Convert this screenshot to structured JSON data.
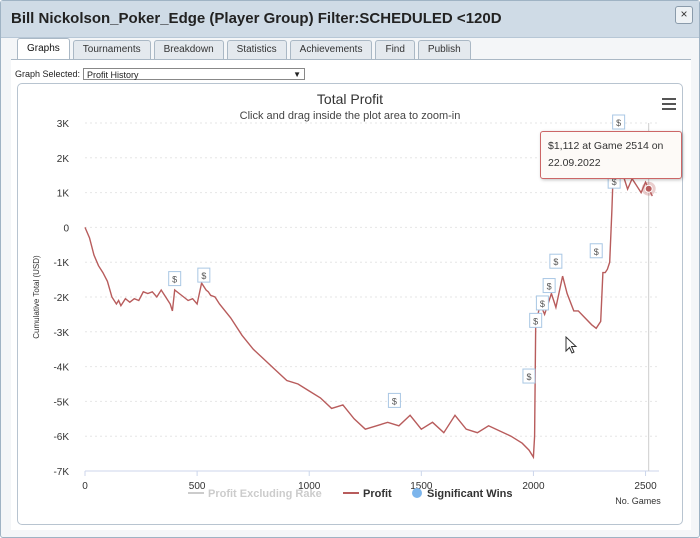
{
  "window": {
    "title": "Bill Nickolson_Poker_Edge (Player Group) Filter:SCHEDULED <120D",
    "close_label": "×"
  },
  "tabs": [
    {
      "label": "Graphs",
      "active": true
    },
    {
      "label": "Tournaments",
      "active": false
    },
    {
      "label": "Breakdown",
      "active": false
    },
    {
      "label": "Statistics",
      "active": false
    },
    {
      "label": "Achievements",
      "active": false
    },
    {
      "label": "Find",
      "active": false
    },
    {
      "label": "Publish",
      "active": false
    }
  ],
  "graph_select": {
    "label": "Graph Selected:",
    "value": "Profit History"
  },
  "tooltip": {
    "line1": "$1,112 at Game 2514 on",
    "line2": "22.09.2022"
  },
  "icons": {
    "menu": "hamburger-menu-icon",
    "cursor": "mouse-pointer-icon",
    "close": "close-icon"
  },
  "colors": {
    "profit": "#b85c5c",
    "excluding_rake": "#cccccc",
    "significant": "#7cb5ec",
    "grid": "#e6e6e6"
  },
  "chart_data": {
    "type": "line",
    "title": "Total Profit",
    "subtitle": "Click and drag inside the plot area to zoom-in",
    "ylabel": "Cumulative Total (USD)",
    "xlabel": "No. Games",
    "xlim": [
      0,
      2560
    ],
    "ylim": [
      -7000,
      3000
    ],
    "x_ticks": [
      0,
      500,
      1000,
      1500,
      2000,
      2500
    ],
    "x_tick_labels": [
      "0",
      "500",
      "1000",
      "1500",
      "2000",
      "2500"
    ],
    "y_ticks": [
      3000,
      2000,
      1000,
      0,
      -1000,
      -2000,
      -3000,
      -4000,
      -5000,
      -6000,
      -7000
    ],
    "y_tick_labels": [
      "3K",
      "2K",
      "1K",
      "0",
      "-1K",
      "-2K",
      "-3K",
      "-4K",
      "-5K",
      "-6K",
      "-7K"
    ],
    "legend": {
      "placement": "bottom-center",
      "items": [
        {
          "label": "Profit Excluding Rake",
          "kind": "line",
          "color": "#cccccc",
          "faded": true
        },
        {
          "label": "Profit",
          "kind": "line",
          "color": "#b85c5c",
          "faded": false
        },
        {
          "label": "Significant Wins",
          "kind": "dot",
          "color": "#7cb5ec",
          "faded": false
        }
      ]
    },
    "series": [
      {
        "name": "Profit",
        "x": [
          0,
          20,
          40,
          60,
          80,
          100,
          120,
          140,
          150,
          160,
          180,
          200,
          220,
          240,
          260,
          280,
          300,
          320,
          340,
          360,
          380,
          390,
          400,
          420,
          440,
          460,
          480,
          500,
          520,
          540,
          550,
          560,
          580,
          600,
          650,
          700,
          750,
          800,
          850,
          900,
          950,
          1000,
          1050,
          1100,
          1150,
          1200,
          1250,
          1300,
          1350,
          1400,
          1450,
          1500,
          1550,
          1600,
          1650,
          1700,
          1750,
          1800,
          1850,
          1900,
          1950,
          1980,
          2000,
          2005,
          2010,
          2030,
          2050,
          2080,
          2100,
          2130,
          2150,
          2180,
          2200,
          2230,
          2260,
          2280,
          2300,
          2310,
          2320,
          2330,
          2340,
          2350,
          2360,
          2365,
          2370,
          2400,
          2420,
          2440,
          2460,
          2480,
          2500,
          2514,
          2530
        ],
        "y": [
          0,
          -300,
          -800,
          -1100,
          -1300,
          -1550,
          -2000,
          -2200,
          -2100,
          -2250,
          -2050,
          -2150,
          -2050,
          -2100,
          -1850,
          -1900,
          -1850,
          -2000,
          -1800,
          -2000,
          -2200,
          -2400,
          -1800,
          -1900,
          -2000,
          -2100,
          -2050,
          -2200,
          -1600,
          -1800,
          -1850,
          -1950,
          -2000,
          -2200,
          -2600,
          -3100,
          -3500,
          -3800,
          -4100,
          -4400,
          -4500,
          -4700,
          -4900,
          -5200,
          -5100,
          -5500,
          -5800,
          -5700,
          -5600,
          -5700,
          -5400,
          -5800,
          -5600,
          -5900,
          -5400,
          -5800,
          -5900,
          -5700,
          -5850,
          -6000,
          -6200,
          -6400,
          -6600,
          -6000,
          -2800,
          -2200,
          -2500,
          -1900,
          -2300,
          -1400,
          -1900,
          -2400,
          -2400,
          -2600,
          -2800,
          -2900,
          -2700,
          -1300,
          -1300,
          -1200,
          -1000,
          500,
          2400,
          2200,
          2200,
          1500,
          1100,
          1400,
          1200,
          1000,
          1300,
          1112,
          900
        ]
      }
    ],
    "significant_wins": [
      {
        "x": 400,
        "y": -1500
      },
      {
        "x": 530,
        "y": -1400
      },
      {
        "x": 1380,
        "y": -5000
      },
      {
        "x": 1980,
        "y": -4300
      },
      {
        "x": 2010,
        "y": -2700
      },
      {
        "x": 2040,
        "y": -2200
      },
      {
        "x": 2070,
        "y": -1700
      },
      {
        "x": 2100,
        "y": -1000
      },
      {
        "x": 2280,
        "y": -700
      },
      {
        "x": 2360,
        "y": 1300
      },
      {
        "x": 2380,
        "y": 3000
      }
    ],
    "highlight_point": {
      "x": 2514,
      "y": 1112
    }
  }
}
